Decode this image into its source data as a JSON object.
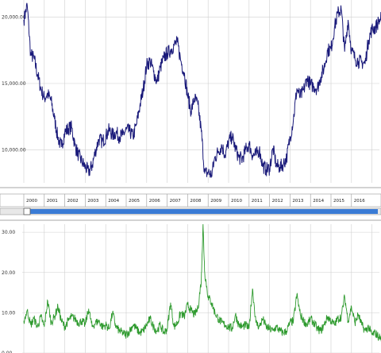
{
  "colors": {
    "background": "#ffffff",
    "grid": "#cfcfcf",
    "price_line": "#1a1a7a",
    "volatility_line": "#2e9a2e",
    "scrollbar_fill": "#3a7bd5",
    "scrollbar_track": "#e8e8e8"
  },
  "timeline": {
    "years": [
      "2000",
      "2001",
      "2002",
      "2003",
      "2004",
      "2005",
      "2006",
      "2007",
      "2008",
      "2009",
      "2010",
      "2011",
      "2012",
      "2013",
      "2014",
      "2015",
      "2016"
    ]
  },
  "chart_data": [
    {
      "type": "line",
      "title": "",
      "xlabel": "",
      "ylabel": "",
      "ylim": [
        7500,
        21300
      ],
      "yticks": [
        10000,
        15000,
        20000
      ],
      "ytick_labels": [
        "10,000.00",
        "15,000.00",
        "20,000.00"
      ],
      "grid": true,
      "x_range": [
        "2000",
        "2016"
      ],
      "series": [
        {
          "points": [
            [
              "2000-01",
              19800
            ],
            [
              "2000-03",
              20900
            ],
            [
              "2000-05",
              17200
            ],
            [
              "2000-07",
              16900
            ],
            [
              "2000-09",
              15700
            ],
            [
              "2000-11",
              14600
            ],
            [
              "2001-01",
              13900
            ],
            [
              "2001-03",
              14200
            ],
            [
              "2001-05",
              13700
            ],
            [
              "2001-07",
              12300
            ],
            [
              "2001-09",
              10900
            ],
            [
              "2001-11",
              10200
            ],
            [
              "2002-01",
              11300
            ],
            [
              "2002-03",
              11600
            ],
            [
              "2002-05",
              11700
            ],
            [
              "2002-07",
              10300
            ],
            [
              "2002-09",
              9600
            ],
            [
              "2002-11",
              9100
            ],
            [
              "2003-01",
              8700
            ],
            [
              "2003-03",
              8300
            ],
            [
              "2003-05",
              8800
            ],
            [
              "2003-07",
              9900
            ],
            [
              "2003-09",
              10800
            ],
            [
              "2003-11",
              10600
            ],
            [
              "2004-01",
              11000
            ],
            [
              "2004-03",
              11500
            ],
            [
              "2004-05",
              11100
            ],
            [
              "2004-07",
              11300
            ],
            [
              "2004-09",
              11000
            ],
            [
              "2004-11",
              11100
            ],
            [
              "2005-01",
              11500
            ],
            [
              "2005-03",
              11400
            ],
            [
              "2005-05",
              11000
            ],
            [
              "2005-07",
              11900
            ],
            [
              "2005-09",
              13300
            ],
            [
              "2005-11",
              14600
            ],
            [
              "2006-01",
              16400
            ],
            [
              "2006-03",
              16700
            ],
            [
              "2006-05",
              15900
            ],
            [
              "2006-07",
              15100
            ],
            [
              "2006-09",
              16200
            ],
            [
              "2006-11",
              16900
            ],
            [
              "2007-01",
              17300
            ],
            [
              "2007-03",
              17500
            ],
            [
              "2007-05",
              17900
            ],
            [
              "2007-07",
              18100
            ],
            [
              "2007-09",
              16700
            ],
            [
              "2007-11",
              15800
            ],
            [
              "2008-01",
              14100
            ],
            [
              "2008-03",
              12900
            ],
            [
              "2008-05",
              13900
            ],
            [
              "2008-07",
              13400
            ],
            [
              "2008-09",
              11400
            ],
            [
              "2008-11",
              8200
            ],
            [
              "2009-01",
              8300
            ],
            [
              "2009-03",
              8100
            ],
            [
              "2009-05",
              9400
            ],
            [
              "2009-07",
              9900
            ],
            [
              "2009-09",
              10300
            ],
            [
              "2009-11",
              9600
            ],
            [
              "2010-01",
              10600
            ],
            [
              "2010-03",
              11000
            ],
            [
              "2010-05",
              10100
            ],
            [
              "2010-07",
              9400
            ],
            [
              "2010-09",
              9300
            ],
            [
              "2010-11",
              10000
            ],
            [
              "2011-01",
              10400
            ],
            [
              "2011-03",
              9600
            ],
            [
              "2011-05",
              9600
            ],
            [
              "2011-07",
              10000
            ],
            [
              "2011-09",
              8800
            ],
            [
              "2011-11",
              8500
            ],
            [
              "2012-01",
              8600
            ],
            [
              "2012-03",
              10100
            ],
            [
              "2012-05",
              8800
            ],
            [
              "2012-07",
              8700
            ],
            [
              "2012-09",
              8900
            ],
            [
              "2012-11",
              9400
            ],
            [
              "2013-01",
              10900
            ],
            [
              "2013-03",
              12300
            ],
            [
              "2013-05",
              14600
            ],
            [
              "2013-07",
              14000
            ],
            [
              "2013-09",
              14500
            ],
            [
              "2013-11",
              15400
            ],
            [
              "2014-01",
              14900
            ],
            [
              "2014-03",
              14800
            ],
            [
              "2014-05",
              14600
            ],
            [
              "2014-07",
              15500
            ],
            [
              "2014-09",
              16200
            ],
            [
              "2014-11",
              17500
            ],
            [
              "2015-01",
              17600
            ],
            [
              "2015-03",
              19200
            ],
            [
              "2015-05",
              20300
            ],
            [
              "2015-07",
              20600
            ],
            [
              "2015-09",
              17400
            ],
            [
              "2015-11",
              19800
            ],
            [
              "2016-01",
              17500
            ],
            [
              "2016-03",
              16900
            ],
            [
              "2016-05",
              16700
            ],
            [
              "2016-07",
              16600
            ],
            [
              "2016-09",
              16500
            ],
            [
              "2016-11",
              18300
            ],
            [
              "2017-01",
              19100
            ],
            [
              "2017-03",
              19200
            ],
            [
              "2017-05",
              19700
            ],
            [
              "2017-07",
              20000
            ]
          ]
        }
      ]
    },
    {
      "type": "line",
      "title": "",
      "xlabel": "",
      "ylabel": "",
      "ylim": [
        0,
        32
      ],
      "yticks": [
        0,
        10,
        20,
        30
      ],
      "ytick_labels": [
        "0.00",
        "10.00",
        "20.00",
        "30.00"
      ],
      "grid": true,
      "x_range": [
        "2000",
        "2016"
      ],
      "series": [
        {
          "points": [
            [
              "2000-01",
              8.0
            ],
            [
              "2000-03",
              10.5
            ],
            [
              "2000-05",
              7.0
            ],
            [
              "2000-07",
              8.5
            ],
            [
              "2000-09",
              6.5
            ],
            [
              "2000-11",
              9.0
            ],
            [
              "2001-01",
              6.5
            ],
            [
              "2001-03",
              13.0
            ],
            [
              "2001-05",
              7.5
            ],
            [
              "2001-07",
              9.0
            ],
            [
              "2001-09",
              11.5
            ],
            [
              "2001-11",
              8.0
            ],
            [
              "2002-01",
              6.5
            ],
            [
              "2002-03",
              8.0
            ],
            [
              "2002-05",
              9.0
            ],
            [
              "2002-07",
              8.5
            ],
            [
              "2002-09",
              7.5
            ],
            [
              "2002-11",
              8.0
            ],
            [
              "2003-01",
              7.0
            ],
            [
              "2003-03",
              11.0
            ],
            [
              "2003-05",
              6.5
            ],
            [
              "2003-07",
              7.5
            ],
            [
              "2003-09",
              8.0
            ],
            [
              "2003-11",
              6.5
            ],
            [
              "2004-01",
              7.0
            ],
            [
              "2004-03",
              6.0
            ],
            [
              "2004-05",
              10.0
            ],
            [
              "2004-07",
              6.5
            ],
            [
              "2004-09",
              5.5
            ],
            [
              "2004-11",
              5.0
            ],
            [
              "2005-01",
              4.5
            ],
            [
              "2005-03",
              5.5
            ],
            [
              "2005-05",
              7.0
            ],
            [
              "2005-07",
              6.0
            ],
            [
              "2005-09",
              5.0
            ],
            [
              "2005-11",
              5.5
            ],
            [
              "2006-01",
              7.0
            ],
            [
              "2006-03",
              8.5
            ],
            [
              "2006-05",
              6.5
            ],
            [
              "2006-07",
              5.5
            ],
            [
              "2006-09",
              7.0
            ],
            [
              "2006-11",
              5.0
            ],
            [
              "2007-01",
              6.0
            ],
            [
              "2007-03",
              12.5
            ],
            [
              "2007-05",
              6.5
            ],
            [
              "2007-07",
              7.5
            ],
            [
              "2007-09",
              10.0
            ],
            [
              "2007-11",
              9.0
            ],
            [
              "2008-01",
              12.0
            ],
            [
              "2008-03",
              10.5
            ],
            [
              "2008-05",
              9.5
            ],
            [
              "2008-07",
              11.0
            ],
            [
              "2008-09",
              18.0
            ],
            [
              "2008-10",
              32.0
            ],
            [
              "2008-11",
              20.0
            ],
            [
              "2009-01",
              14.0
            ],
            [
              "2009-03",
              12.5
            ],
            [
              "2009-05",
              10.0
            ],
            [
              "2009-07",
              8.5
            ],
            [
              "2009-09",
              7.5
            ],
            [
              "2009-11",
              7.0
            ],
            [
              "2010-01",
              6.5
            ],
            [
              "2010-03",
              6.0
            ],
            [
              "2010-05",
              9.5
            ],
            [
              "2010-07",
              7.0
            ],
            [
              "2010-09",
              6.5
            ],
            [
              "2010-11",
              7.0
            ],
            [
              "2011-01",
              6.0
            ],
            [
              "2011-03",
              16.0
            ],
            [
              "2011-05",
              7.5
            ],
            [
              "2011-07",
              6.5
            ],
            [
              "2011-09",
              8.5
            ],
            [
              "2011-11",
              6.5
            ],
            [
              "2012-01",
              6.0
            ],
            [
              "2012-03",
              5.5
            ],
            [
              "2012-05",
              6.5
            ],
            [
              "2012-07",
              5.5
            ],
            [
              "2012-09",
              5.0
            ],
            [
              "2012-11",
              5.5
            ],
            [
              "2013-01",
              7.5
            ],
            [
              "2013-03",
              8.0
            ],
            [
              "2013-05",
              14.5
            ],
            [
              "2013-07",
              9.5
            ],
            [
              "2013-09",
              8.0
            ],
            [
              "2013-11",
              7.0
            ],
            [
              "2014-01",
              8.5
            ],
            [
              "2014-03",
              7.5
            ],
            [
              "2014-05",
              6.0
            ],
            [
              "2014-07",
              5.5
            ],
            [
              "2014-09",
              7.0
            ],
            [
              "2014-11",
              9.0
            ],
            [
              "2015-01",
              8.0
            ],
            [
              "2015-03",
              7.0
            ],
            [
              "2015-05",
              8.5
            ],
            [
              "2015-07",
              9.0
            ],
            [
              "2015-09",
              14.0
            ],
            [
              "2015-11",
              8.0
            ],
            [
              "2016-01",
              11.5
            ],
            [
              "2016-03",
              7.5
            ],
            [
              "2016-05",
              9.5
            ],
            [
              "2016-07",
              7.0
            ],
            [
              "2016-09",
              5.5
            ],
            [
              "2016-11",
              6.5
            ],
            [
              "2017-01",
              4.5
            ],
            [
              "2017-03",
              5.0
            ],
            [
              "2017-05",
              4.0
            ],
            [
              "2017-07",
              3.5
            ]
          ]
        }
      ]
    }
  ]
}
